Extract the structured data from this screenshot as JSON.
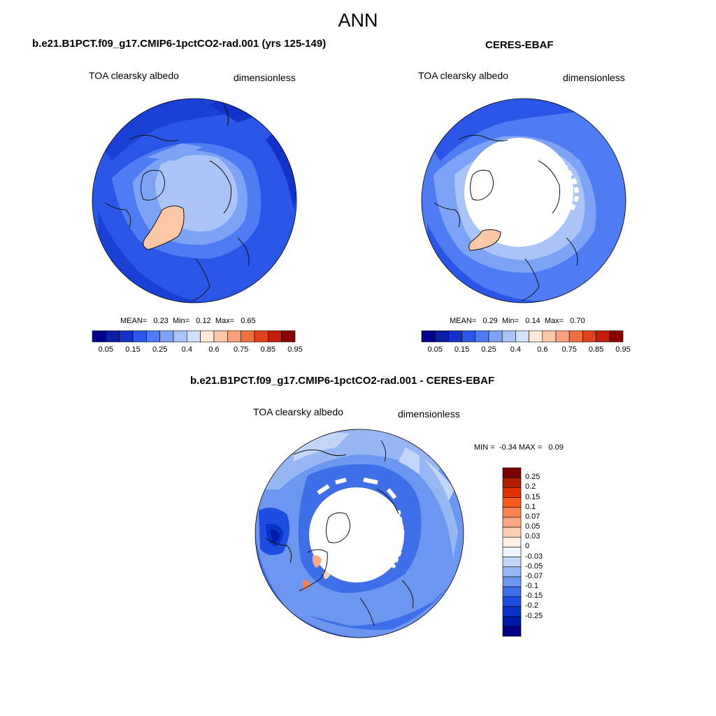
{
  "figure": {
    "title": "ANN"
  },
  "panels": {
    "model": {
      "case": "b.e21.B1PCT.f09_g17.CMIP6-1pctCO2-rad.001 (yrs 125-149)",
      "variable": "TOA clearsky albedo",
      "units": "dimensionless",
      "mean_label": "MEAN=",
      "mean": "0.23",
      "min_label": "Min=",
      "min": "0.12",
      "max_label": "Max=",
      "max": "0.65"
    },
    "obs": {
      "case": "CERES-EBAF",
      "variable": "TOA clearsky albedo",
      "units": "dimensionless",
      "mean_label": "MEAN=",
      "mean": "0.29",
      "min_label": "Min=",
      "min": "0.14",
      "max_label": "Max=",
      "max": "0.70"
    },
    "diff": {
      "case": "b.e21.B1PCT.f09_g17.CMIP6-1pctCO2-rad.001 - CERES-EBAF",
      "variable": "TOA clearsky albedo",
      "units": "dimensionless",
      "min_label": "MIN =",
      "min": "-0.34",
      "max_label": "MAX =",
      "max": "0.09"
    }
  },
  "colorbar_main": {
    "labels": [
      "0.05",
      "0.15",
      "0.25",
      "0.4",
      "0.6",
      "0.75",
      "0.85",
      "0.95"
    ],
    "colors": [
      "#00008a",
      "#0a1ea8",
      "#1432c8",
      "#2a55e6",
      "#4f7cf2",
      "#7ea3f6",
      "#aac4f8",
      "#d2e1fb",
      "#ffe9d8",
      "#fcc8a8",
      "#f8a07a",
      "#f0703e",
      "#e0401a",
      "#c21e08",
      "#8a0000"
    ]
  },
  "colorbar_diff": {
    "labels": [
      "0.25",
      "0.2",
      "0.15",
      "0.1",
      "0.07",
      "0.05",
      "0.03",
      "0",
      "-0.03",
      "-0.05",
      "-0.07",
      "-0.1",
      "-0.15",
      "-0.2",
      "-0.25"
    ],
    "colors": [
      "#7a0000",
      "#b01e00",
      "#e03200",
      "#fa5a1e",
      "#fc8250",
      "#fca884",
      "#fccfb4",
      "#ffeee4",
      "#eef4fd",
      "#c3d6f8",
      "#96b6f4",
      "#6c96f0",
      "#3e6ee8",
      "#1e4ee0",
      "#0a32c8",
      "#001aa8",
      "#000080"
    ]
  }
}
